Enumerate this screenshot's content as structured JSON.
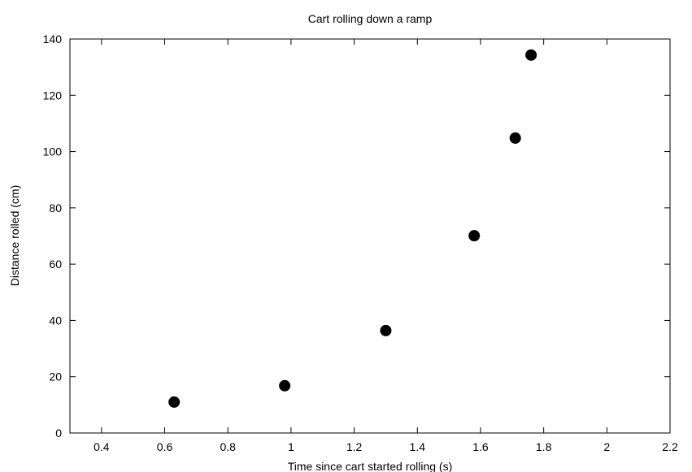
{
  "chart_data": {
    "type": "scatter",
    "title": "Cart rolling down a ramp",
    "xlabel": "Time since cart started rolling (s)",
    "ylabel": "Distance rolled (cm)",
    "xlim": [
      0.3,
      2.2
    ],
    "ylim": [
      0,
      140
    ],
    "x_ticks": [
      0.4,
      0.6,
      0.8,
      1,
      1.2,
      1.4,
      1.6,
      1.8,
      2,
      2.2
    ],
    "x_tick_labels": [
      "0.4",
      "0.6",
      "0.8",
      "1",
      "1.2",
      "1.4",
      "1.6",
      "1.8",
      "2",
      "2.2"
    ],
    "y_ticks": [
      0,
      20,
      40,
      60,
      80,
      100,
      120,
      140
    ],
    "y_tick_labels": [
      "0",
      "20",
      "40",
      "60",
      "80",
      "100",
      "120",
      "140"
    ],
    "grid": false,
    "legend": "none",
    "marker_color": "#000000",
    "points": [
      {
        "x": 0.63,
        "y": 11
      },
      {
        "x": 0.98,
        "y": 16.8
      },
      {
        "x": 1.3,
        "y": 36.4
      },
      {
        "x": 1.58,
        "y": 70.1
      },
      {
        "x": 1.71,
        "y": 104.8
      },
      {
        "x": 1.76,
        "y": 134.3
      }
    ]
  }
}
